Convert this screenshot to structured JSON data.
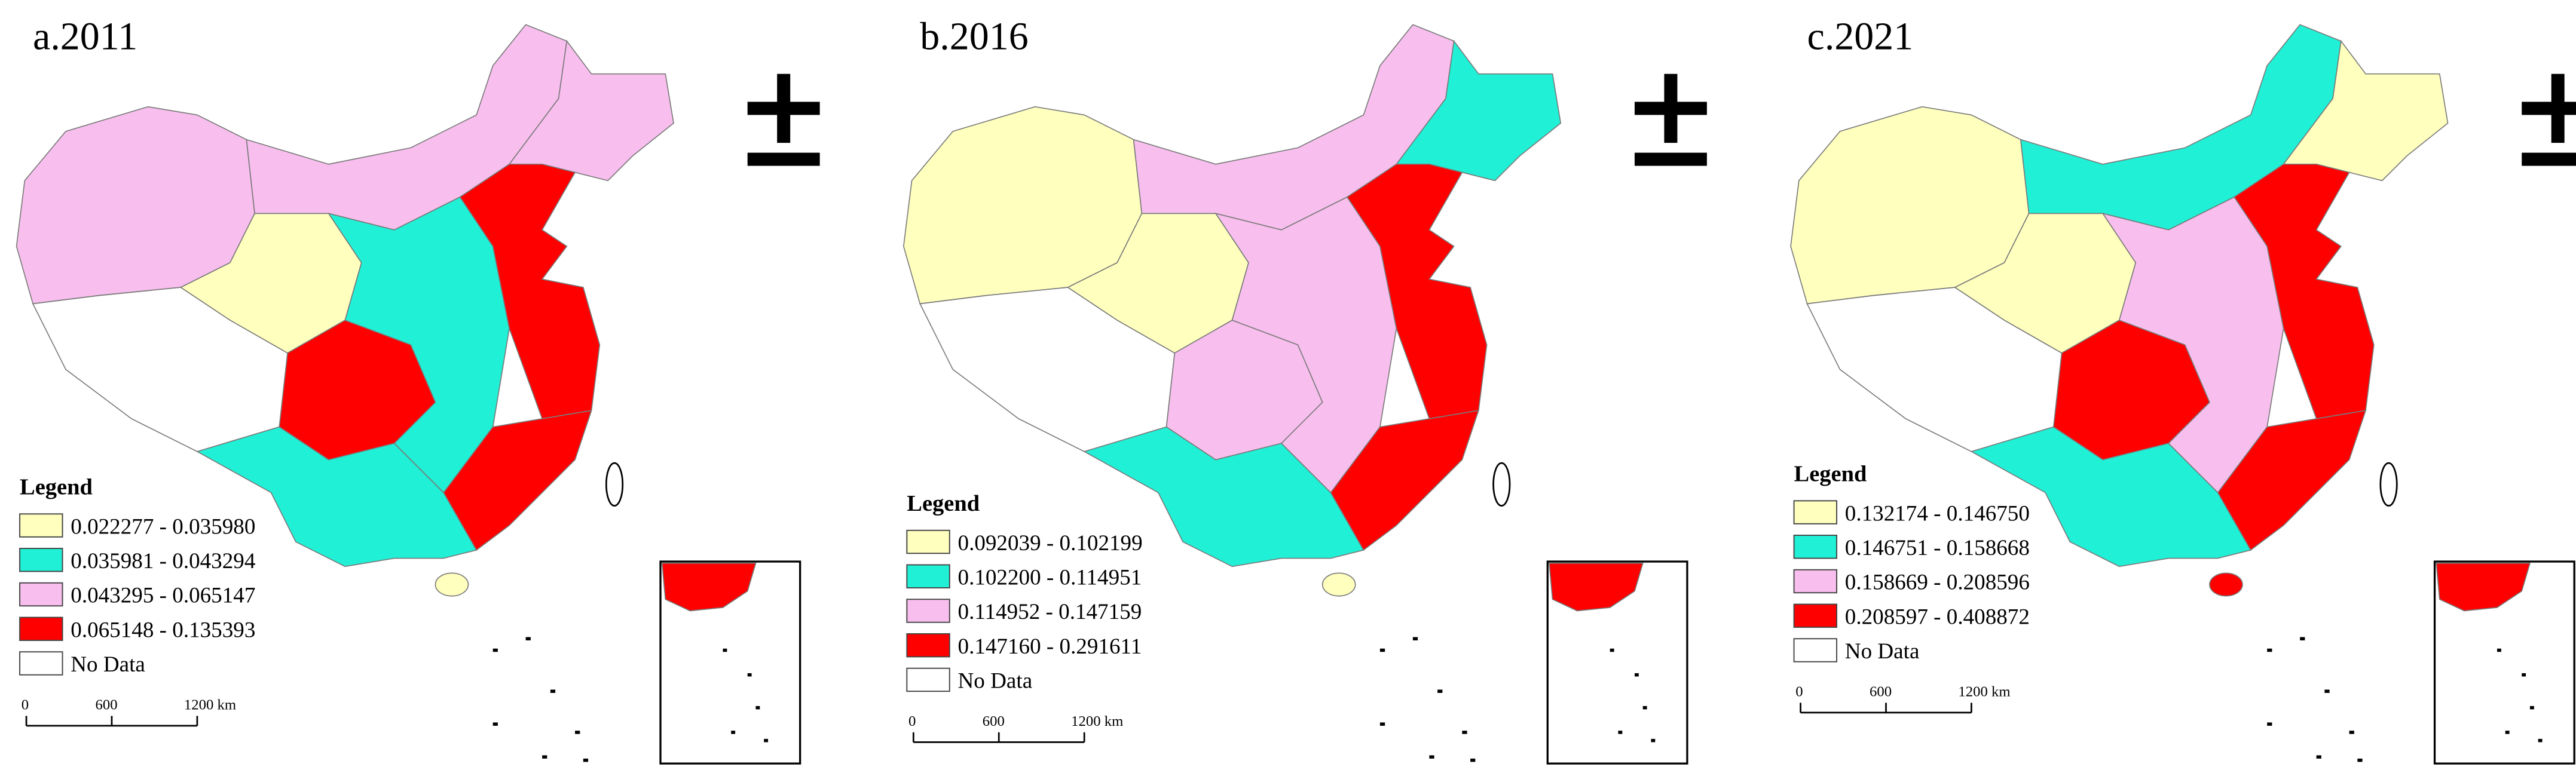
{
  "panels": [
    {
      "title": "a.2011",
      "legend": {
        "title": "Legend",
        "items": [
          {
            "label": "0.022277 - 0.035980",
            "color": "#ffffbe"
          },
          {
            "label": "0.035981 - 0.043294",
            "color": "#20f0d6"
          },
          {
            "label": "0.043295 - 0.065147",
            "color": "#f8bfee"
          },
          {
            "label": "0.065148 - 0.135393",
            "color": "#ff0000"
          }
        ],
        "no_data": "No Data"
      },
      "scale": [
        "0",
        "600",
        "1200 km"
      ]
    },
    {
      "title": "b.2016",
      "legend": {
        "title": "Legend",
        "items": [
          {
            "label": "0.092039 - 0.102199",
            "color": "#ffffbe"
          },
          {
            "label": "0.102200 - 0.114951",
            "color": "#20f0d6"
          },
          {
            "label": "0.114952 - 0.147159",
            "color": "#f8bfee"
          },
          {
            "label": "0.147160 - 0.291611",
            "color": "#ff0000"
          }
        ],
        "no_data": "No Data"
      },
      "scale": [
        "0",
        "600",
        "1200 km"
      ]
    },
    {
      "title": "c.2021",
      "legend": {
        "title": "Legend",
        "items": [
          {
            "label": "0.132174 - 0.146750",
            "color": "#ffffbe"
          },
          {
            "label": "0.146751 - 0.158668",
            "color": "#20f0d6"
          },
          {
            "label": "0.158669 - 0.208596",
            "color": "#f8bfee"
          },
          {
            "label": "0.208597 - 0.408872",
            "color": "#ff0000"
          }
        ],
        "no_data": "No Data"
      },
      "scale": [
        "0",
        "600",
        "1200 km"
      ]
    }
  ]
}
